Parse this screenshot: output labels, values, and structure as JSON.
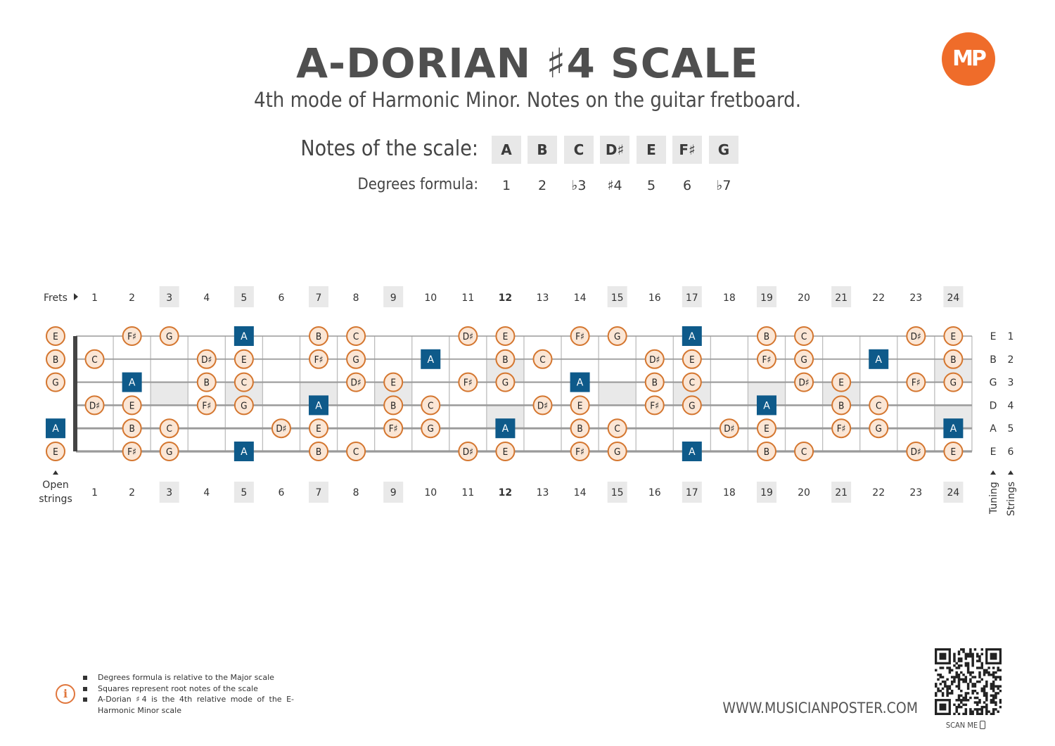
{
  "header": {
    "title": "A-DORIAN ♯4 SCALE",
    "subtitle": "4th mode of Harmonic Minor. Notes on the guitar fretboard.",
    "logo_text": "MP"
  },
  "scale": {
    "notes_label": "Notes of the scale:",
    "degrees_label": "Degrees formula:",
    "notes": [
      "A",
      "B",
      "C",
      "D♯",
      "E",
      "F♯",
      "G"
    ],
    "degrees": [
      "1",
      "2",
      "♭3",
      "♯4",
      "5",
      "6",
      "♭7"
    ]
  },
  "fretboard": {
    "frets_label": "Frets",
    "open_strings_label": [
      "Open",
      "strings"
    ],
    "tuning_label": "Tuning",
    "strings_label": "Strings",
    "fret_numbers": [
      "1",
      "2",
      "3",
      "4",
      "5",
      "6",
      "7",
      "8",
      "9",
      "10",
      "11",
      "12",
      "13",
      "14",
      "15",
      "16",
      "17",
      "18",
      "19",
      "20",
      "21",
      "22",
      "23",
      "24"
    ],
    "highlighted_frets": [
      "3",
      "5",
      "7",
      "9",
      "15",
      "17",
      "19",
      "21",
      "24"
    ],
    "bold_fret": "12",
    "tuning": [
      "E",
      "B",
      "G",
      "D",
      "A",
      "E"
    ],
    "string_numbers": [
      "1",
      "2",
      "3",
      "4",
      "5",
      "6"
    ],
    "root_note": "A",
    "rows": [
      [
        "E",
        "",
        "F♯",
        "G",
        "",
        "A",
        "",
        "B",
        "C",
        "",
        "",
        "D♯",
        "E",
        "",
        "F♯",
        "G",
        "",
        "A",
        "",
        "B",
        "C",
        "",
        "",
        "D♯",
        "E"
      ],
      [
        "B",
        "C",
        "",
        "",
        "D♯",
        "E",
        "",
        "F♯",
        "G",
        "",
        "A",
        "",
        "B",
        "C",
        "",
        "",
        "D♯",
        "E",
        "",
        "F♯",
        "G",
        "",
        "A",
        "",
        "B"
      ],
      [
        "G",
        "",
        "A",
        "",
        "B",
        "C",
        "",
        "",
        "D♯",
        "E",
        "",
        "F♯",
        "G",
        "",
        "A",
        "",
        "B",
        "C",
        "",
        "",
        "D♯",
        "E",
        "",
        "F♯",
        "G"
      ],
      [
        "",
        "D♯",
        "E",
        "",
        "F♯",
        "G",
        "",
        "A",
        "",
        "B",
        "C",
        "",
        "",
        "D♯",
        "E",
        "",
        "F♯",
        "G",
        "",
        "A",
        "",
        "B",
        "C",
        "",
        ""
      ],
      [
        "A",
        "",
        "B",
        "C",
        "",
        "",
        "D♯",
        "E",
        "",
        "F♯",
        "G",
        "",
        "A",
        "",
        "B",
        "C",
        "",
        "",
        "D♯",
        "E",
        "",
        "F♯",
        "G",
        "",
        "A"
      ],
      [
        "E",
        "",
        "F♯",
        "G",
        "",
        "A",
        "",
        "B",
        "C",
        "",
        "",
        "D♯",
        "E",
        "",
        "F♯",
        "G",
        "",
        "A",
        "",
        "B",
        "C",
        "",
        "",
        "D♯",
        "E"
      ]
    ]
  },
  "footer": {
    "notes": [
      "Degrees formula is relative to the Major scale",
      "Squares represent root notes of the scale",
      "A-Dorian ♯4 is the 4th relative mode of the E-Harmonic Minor scale"
    ],
    "website": "WWW.MUSICIANPOSTER.COM",
    "scan_me": "SCAN ME"
  },
  "colors": {
    "note_fill": "#fbe6d5",
    "note_stroke": "#d4762f",
    "root_fill": "#0e5a8a",
    "highlight": "#e9e9e9",
    "string": "#9a9a9a",
    "fret": "#bdbdbd",
    "nut": "#444444",
    "accent": "#ef6c2a"
  }
}
